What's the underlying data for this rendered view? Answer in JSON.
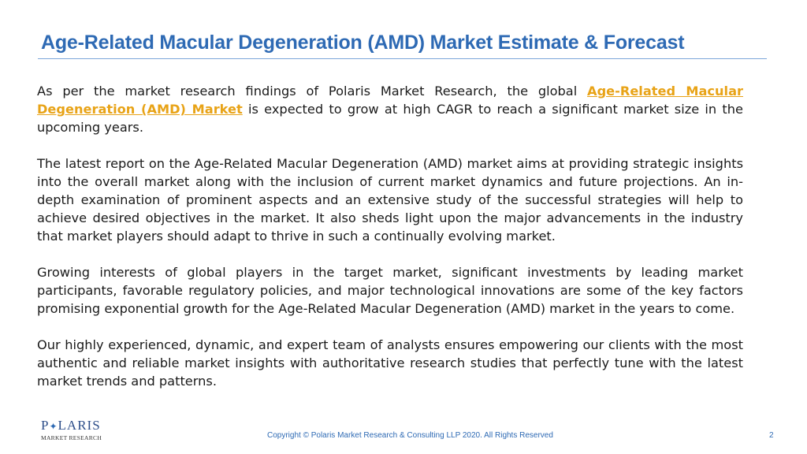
{
  "slide": {
    "title": "Age-Related Macular Degeneration (AMD) Market Estimate & Forecast",
    "paragraphs": [
      {
        "before": "As per the market research findings of Polaris Market Research, the global ",
        "link": "Age-Related Macular Degeneration (AMD) Market",
        "after": " is expected to grow at high CAGR to reach a significant market size in the upcoming years."
      },
      {
        "text": "The latest report on the Age-Related Macular Degeneration (AMD) market aims at providing strategic insights into the overall market along with the inclusion of current market dynamics and future projections. An in-depth examination of prominent aspects and an extensive study of the successful strategies will help to achieve desired objectives in the market. It also sheds light upon the major advancements in the industry that market players should adapt to thrive in such a continually evolving market."
      },
      {
        "text": "Growing interests of global players in the target market, significant investments by leading market participants, favorable regulatory policies, and major technological innovations are some of the key factors promising exponential growth for the Age-Related Macular Degeneration (AMD) market in the years to come."
      },
      {
        "text": "Our highly experienced, dynamic, and expert team of analysts ensures empowering our clients with the most authentic and reliable market insights with authoritative research studies that perfectly tune with the latest market trends and patterns."
      }
    ],
    "logo": {
      "word_start": "P",
      "word_end": "LARIS",
      "subtitle": "MARKET RESEARCH"
    },
    "footer": {
      "copyright": "Copyright © Polaris Market Research & Consulting LLP 2020. All Rights Reserved",
      "page_number": "2"
    },
    "colors": {
      "title": "#2e6ab4",
      "link": "#e8a317",
      "text": "#1a1a1a"
    }
  }
}
